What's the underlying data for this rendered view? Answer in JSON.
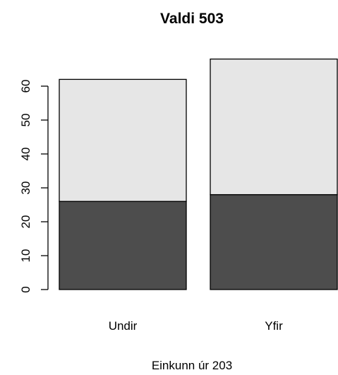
{
  "chart_data": {
    "type": "bar",
    "stacked": true,
    "title": "Valdi 503",
    "xlabel": "Einkunn úr 203",
    "ylabel": "",
    "categories": [
      "Undir",
      "Yfir"
    ],
    "series": [
      {
        "values": [
          26,
          28
        ],
        "color": "#4d4d4d"
      },
      {
        "values": [
          36,
          40
        ],
        "color": "#e6e6e6"
      }
    ],
    "yticks": [
      "0",
      "10",
      "20",
      "30",
      "40",
      "50",
      "60"
    ],
    "ylim": [
      0,
      68
    ],
    "grid": false,
    "legend": "none"
  }
}
